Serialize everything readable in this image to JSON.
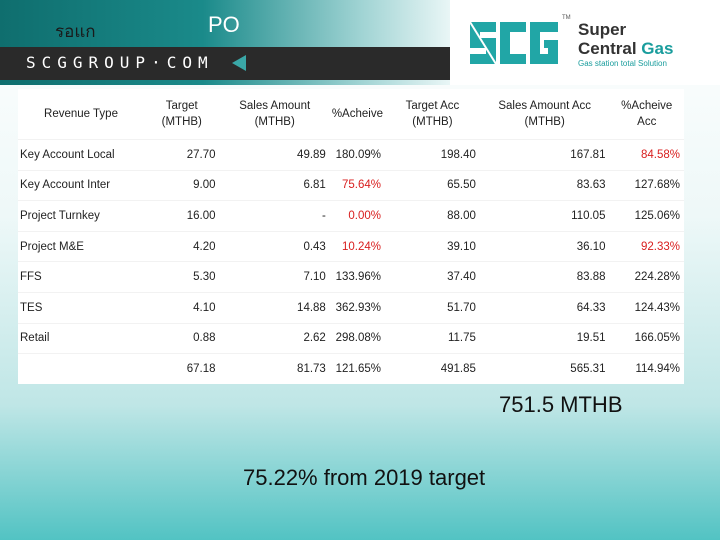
{
  "header": {
    "thai_text": "รอแก",
    "title": "PO",
    "strip_text": "SCGGROUP·COM"
  },
  "logo": {
    "mark": "SCG",
    "tm": "TM",
    "line1": "Super",
    "line2a": "Central ",
    "line2b": "Gas",
    "tagline": "Gas station total Solution"
  },
  "table": {
    "headers": [
      "Revenue Type",
      "Target (MTHB)",
      "Sales Amount (MTHB)",
      "%Acheive",
      "Target Acc (MTHB)",
      "Sales Amount Acc (MTHB)",
      "%Acheive Acc"
    ],
    "rows": [
      {
        "label": "Key Account Local",
        "target": "27.70",
        "sales": "49.89",
        "ach": "180.09%",
        "target_acc": "198.40",
        "sales_acc": "167.81",
        "ach_acc": "84.58%"
      },
      {
        "label": "Key Account Inter",
        "target": "9.00",
        "sales": "6.81",
        "ach": "75.64%",
        "target_acc": "65.50",
        "sales_acc": "83.63",
        "ach_acc": "127.68%"
      },
      {
        "label": "Project Turnkey",
        "target": "16.00",
        "sales": "-",
        "ach": "0.00%",
        "target_acc": "88.00",
        "sales_acc": "110.05",
        "ach_acc": "125.06%"
      },
      {
        "label": "Project M&E",
        "target": "4.20",
        "sales": "0.43",
        "ach": "10.24%",
        "target_acc": "39.10",
        "sales_acc": "36.10",
        "ach_acc": "92.33%"
      },
      {
        "label": "FFS",
        "target": "5.30",
        "sales": "7.10",
        "ach": "133.96%",
        "target_acc": "37.40",
        "sales_acc": "83.88",
        "ach_acc": "224.28%"
      },
      {
        "label": "TES",
        "target": "4.10",
        "sales": "14.88",
        "ach": "362.93%",
        "target_acc": "51.70",
        "sales_acc": "64.33",
        "ach_acc": "124.43%"
      },
      {
        "label": "Retail",
        "target": "0.88",
        "sales": "2.62",
        "ach": "298.08%",
        "target_acc": "11.75",
        "sales_acc": "19.51",
        "ach_acc": "166.05%"
      },
      {
        "label": "",
        "target": "67.18",
        "sales": "81.73",
        "ach": "121.65%",
        "target_acc": "491.85",
        "sales_acc": "565.31",
        "ach_acc": "114.94%"
      }
    ],
    "red_color": "#d81e1e"
  },
  "summary": {
    "total": "751.5 MTHB",
    "percent": "75.22% from 2019 target"
  }
}
